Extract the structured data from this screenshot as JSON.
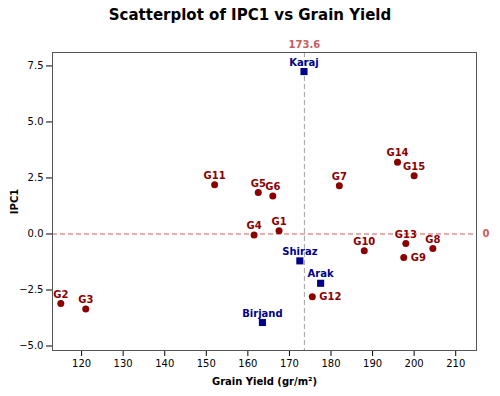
{
  "chart_data": {
    "type": "scatter",
    "title": "Scatterplot of IPC1 vs Grain Yield",
    "xlabel": "Grain Yield (gr/m²)",
    "ylabel": "IPC1",
    "xlim": [
      113,
      215
    ],
    "ylim": [
      -5.2,
      8.1
    ],
    "xticks": [
      120,
      130,
      140,
      150,
      160,
      170,
      180,
      190,
      200,
      210
    ],
    "yticks": [
      {
        "value": -5.0,
        "label": "−5.0"
      },
      {
        "value": -2.5,
        "label": "−2.5"
      },
      {
        "value": 0.0,
        "label": "0.0"
      },
      2.5,
      {
        "value": 5.0,
        "label": "5.0"
      },
      7.5
    ],
    "grid": false,
    "series": [
      {
        "color": "#8B0000",
        "marker": "circle",
        "labels": [
          "G1",
          "G2",
          "G3",
          "G4",
          "G5",
          "G6",
          "G7",
          "G8",
          "G9",
          "G10",
          "G11",
          "G12",
          "G13",
          "G14",
          "G15"
        ],
        "x": [
          167.5,
          115.0,
          121.0,
          161.5,
          162.5,
          166.0,
          182.0,
          204.5,
          197.5,
          188.0,
          152.0,
          175.5,
          198.0,
          196.0,
          200.0
        ],
        "y": [
          0.15,
          -3.1,
          -3.35,
          -0.05,
          1.85,
          1.7,
          2.15,
          -0.65,
          -1.05,
          -0.75,
          2.2,
          -2.8,
          -0.42,
          3.2,
          2.6
        ]
      },
      {
        "color": "#00008B",
        "marker": "square",
        "labels": [
          "Karaj",
          "Shiraz",
          "Arak",
          "Birjand"
        ],
        "x": [
          173.5,
          172.5,
          177.5,
          163.5
        ],
        "y": [
          7.25,
          -1.2,
          -2.2,
          -3.95
        ]
      }
    ],
    "reference_lines": [
      {
        "axis": "x",
        "value": 173.6,
        "color": "#A0A0A0",
        "line_style": "dashed",
        "label": "173.6",
        "label_color": "#CD5C5C"
      },
      {
        "axis": "y",
        "value": 0.0,
        "color": "#CD5C5C",
        "line_style": "dashed",
        "label": "0",
        "label_color": "#CD5C5C"
      }
    ]
  }
}
